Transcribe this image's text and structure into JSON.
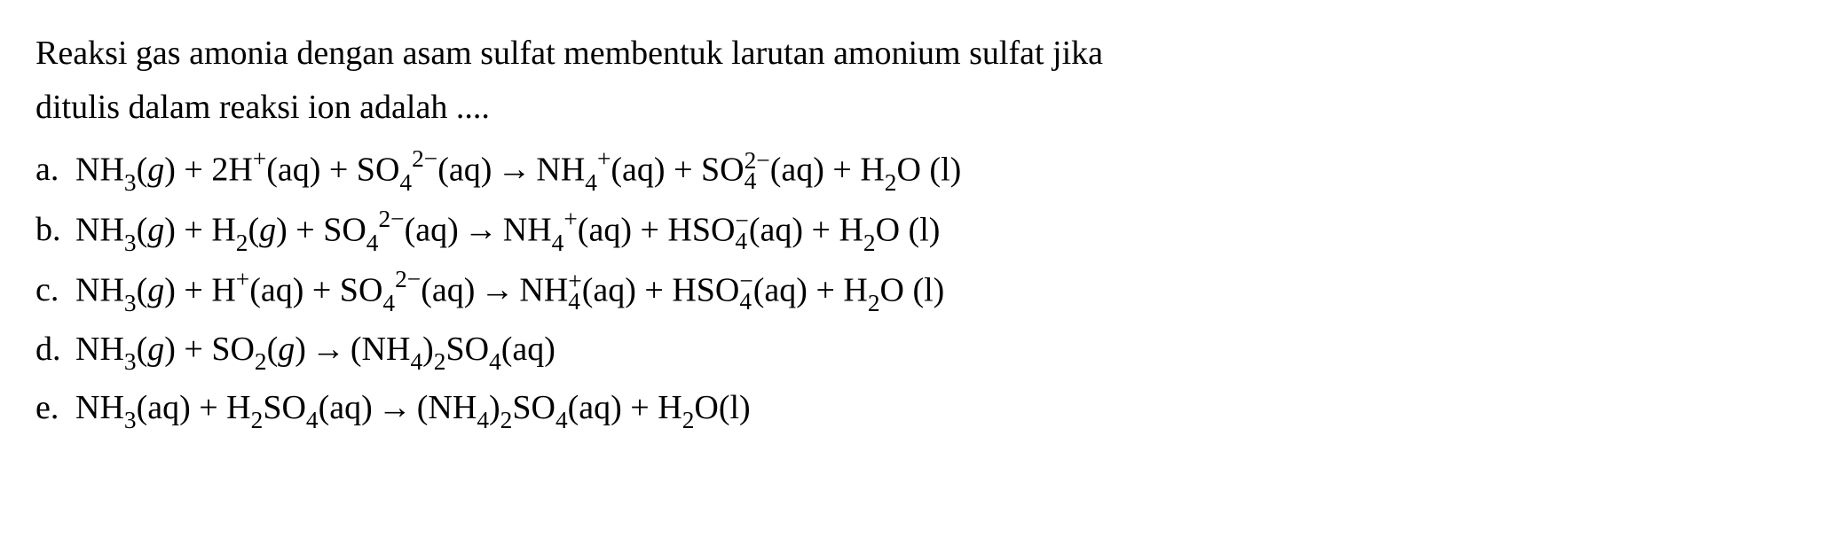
{
  "text_color": "#000000",
  "background_color": "#ffffff",
  "font_family": "Times New Roman",
  "font_size_pt": 28,
  "question": {
    "line1": "Reaksi gas amonia dengan asam sulfat membentuk larutan amonium sulfat jika",
    "line2": "ditulis dalam reaksi ion adalah ...."
  },
  "options": {
    "a": {
      "label": "a.",
      "parts": {
        "p1": "NH",
        "s1": "3",
        "p2": "(",
        "g": "g",
        "p3": ") + 2H",
        "s2": "+",
        "p4": "(aq) + SO",
        "s3": "4",
        "sp1a": "2−",
        "sp1b": " ",
        "p5": "(aq)",
        "arrow": "→",
        "p6": "NH",
        "s4": "4",
        "sp2a": " ",
        "sp2b": "+",
        "p7": "(aq) + SO",
        "s5a": "2−",
        "s5b": "4",
        "p8": "(aq) + H",
        "s6": "2",
        "p9": "O (l)"
      }
    },
    "b": {
      "label": "b.",
      "parts": {
        "p1": "NH",
        "s1": "3",
        "p2": "(",
        "g1": "g",
        "p3": ") + H",
        "s2": "2",
        "p4": "(",
        "g2": "g",
        "p5": ") + SO",
        "s3": "4",
        "sp1": "2−",
        "p6": "(aq)",
        "arrow": "→",
        "p7": "NH",
        "s4": "4",
        "sp2": "+",
        "p8": "(aq) + HSO",
        "s5a": "−",
        "s5b": "4",
        "p9": "(aq) + H",
        "s6": "2",
        "p10": "O (l)"
      }
    },
    "c": {
      "label": "c.",
      "parts": {
        "p1": "NH",
        "s1": "3",
        "p2": "(",
        "g": "g",
        "p3": ") + H",
        "s2": "+",
        "p4": "(aq) + SO",
        "s3": "4",
        "sp1": "2−",
        "p5": "(aq)",
        "arrow": "→",
        "p6": "NH",
        "s4a": "+",
        "s4b": "4",
        "p7": "(aq) + HSO",
        "s5a": "−",
        "s5b": "4",
        "p8": "(aq) + H",
        "s6": "2",
        "p9": "O (l)"
      }
    },
    "d": {
      "label": "d.",
      "parts": {
        "p1": " NH",
        "s1": "3",
        "p2": "(",
        "g1": "g",
        "p3": ") + SO",
        "s2": "2",
        "p4": "(",
        "g2": "g",
        "p5": ")",
        "arrow": "→",
        "p6": "(NH",
        "s3": "4",
        "p7": ")",
        "s4": "2",
        "p8": "SO",
        "s5": "4",
        "p9": "(aq)"
      }
    },
    "e": {
      "label": "e.",
      "parts": {
        "p1": "NH",
        "s1": "3",
        "p2": "(aq) + H",
        "s2": "2",
        "p3": "SO",
        "s3": "4",
        "p4": "(aq)",
        "arrow": "→",
        "p5": "(NH",
        "s4": "4",
        "p6": ")",
        "s5": "2",
        "p7": "SO",
        "s6": "4",
        "p8": "(aq) + H",
        "s7": "2",
        "p9": "O(l)"
      }
    }
  }
}
